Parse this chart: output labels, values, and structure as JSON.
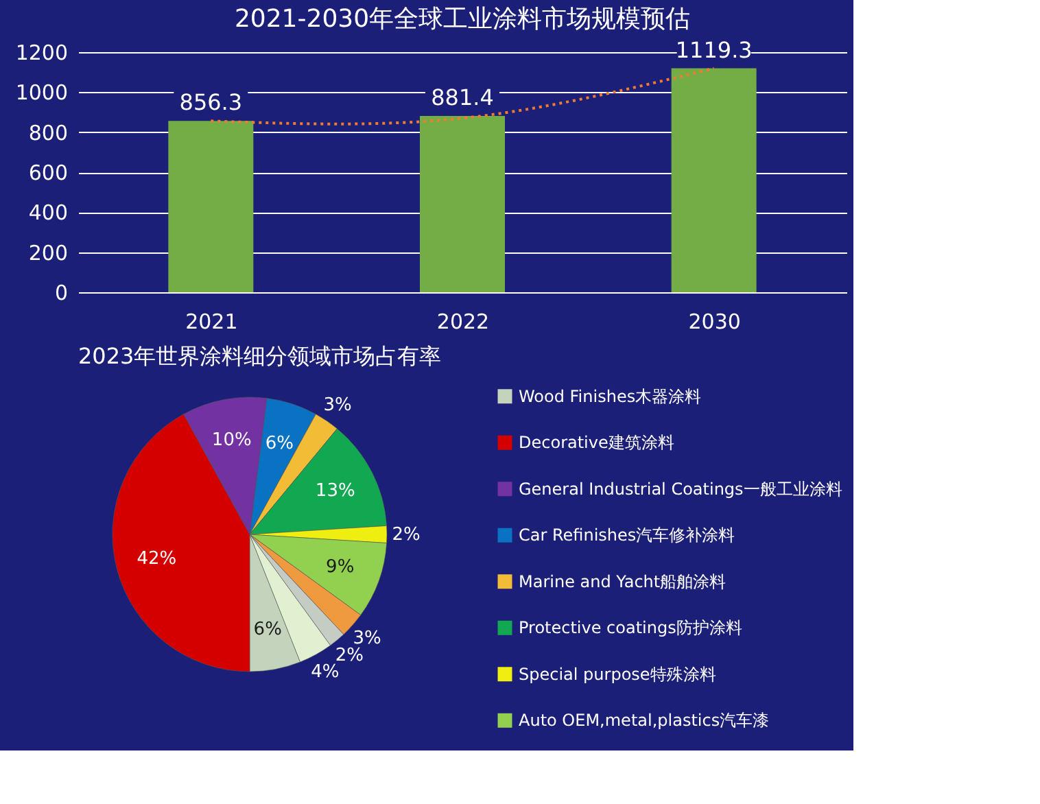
{
  "chart_data": [
    {
      "type": "bar",
      "title": "2021-2030年全球工业涂料市场规模预估",
      "categories": [
        "2021",
        "2022",
        "2030"
      ],
      "series": [
        {
          "type": "bar",
          "color": "#74ad45",
          "values": [
            856.3,
            881.4,
            1119.3
          ],
          "data_labels": true
        },
        {
          "type": "line",
          "color": "#f07c30",
          "line_style": "dotted",
          "marker": "none",
          "values": [
            856,
            870,
            1119
          ]
        }
      ],
      "ylim": [
        0,
        1200
      ],
      "yticks": [
        0,
        200,
        400,
        600,
        800,
        1000,
        1200
      ],
      "grid": "y"
    },
    {
      "type": "pie",
      "title": "2023年世界涂料细分领域市场占有率",
      "legend": "right",
      "categories": [
        "Wood Finishes木器涂料",
        "Decorative建筑涂料",
        "General Industrial Coatings一般工业涂料",
        "Car Refinishes汽车修补涂料",
        "Marine and Yacht船舶涂料",
        "Protective coatings防护涂料",
        "Special purpose特殊涂料",
        "Auto OEM,metal,plastics汽车漆",
        null,
        null,
        null
      ],
      "values": [
        6,
        42,
        10,
        6,
        3,
        13,
        2,
        9,
        3,
        2,
        4
      ],
      "value_labels": [
        "6%",
        "42%",
        "10%",
        "6%",
        "3%",
        "13%",
        "2%",
        "9%",
        "3%",
        "2%",
        "4%"
      ],
      "colors": [
        "#c4d4bc",
        "#d40000",
        "#7232a2",
        "#0a72c2",
        "#f2bc36",
        "#12a852",
        "#eeee10",
        "#92d050",
        "#f09a40",
        "#c4ccc4",
        "#e2f0d2"
      ]
    }
  ]
}
